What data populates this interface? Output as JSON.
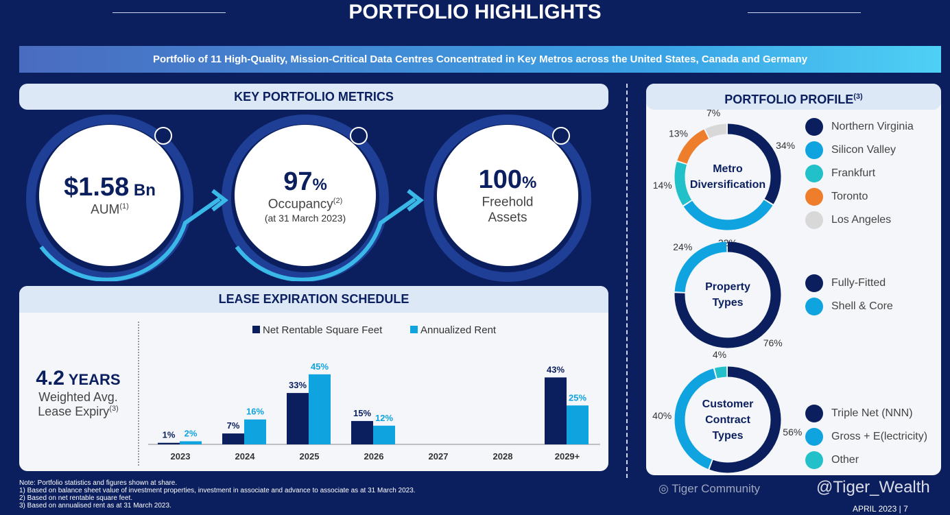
{
  "title": "PORTFOLIO HIGHLIGHTS",
  "banner": "Portfolio of 11 High-Quality, Mission-Critical Data Centres Concentrated in Key Metros across the United States, Canada and Germany",
  "key_metrics": {
    "header": "KEY PORTFOLIO METRICS",
    "items": [
      {
        "value": "$1.58",
        "unit": " Bn",
        "label": "AUM",
        "sup": "(1)",
        "sub": ""
      },
      {
        "value": "97",
        "unit": "%",
        "label": "Occupancy",
        "sup": "(2)",
        "sub": "(at 31 March 2023)"
      },
      {
        "value": "100",
        "unit": "%",
        "label": "Freehold",
        "sup": "",
        "sub": "Assets"
      }
    ]
  },
  "lease": {
    "header": "LEASE EXPIRATION SCHEDULE",
    "wale_value": "4.2",
    "wale_unit": " YEARS",
    "wale_label1": "Weighted Avg.",
    "wale_label2": "Lease Expiry",
    "wale_sup": "(3)"
  },
  "chart_data": {
    "type": "bar",
    "categories": [
      "2023",
      "2024",
      "2025",
      "2026",
      "2027",
      "2028",
      "2029+"
    ],
    "series": [
      {
        "name": "Net Rentable Square Feet",
        "color": "#0b1f5e",
        "values": [
          1,
          7,
          33,
          15,
          null,
          null,
          43
        ]
      },
      {
        "name": "Annualized Rent",
        "color": "#0fa3e0",
        "values": [
          2,
          16,
          45,
          12,
          null,
          null,
          25
        ]
      }
    ],
    "ylim": [
      0,
      50
    ]
  },
  "profile": {
    "header": "PORTFOLIO PROFILE",
    "header_sup": "(3)",
    "donuts": [
      {
        "title1": "Metro",
        "title2": "Diversification",
        "title3": "",
        "slices": [
          {
            "name": "Northern Virginia",
            "value": 34,
            "label": "34%",
            "color": "#0b1f5e"
          },
          {
            "name": "Silicon Valley",
            "value": 32,
            "label": "32%",
            "color": "#0fa3e0"
          },
          {
            "name": "Frankfurt",
            "value": 14,
            "label": "14%",
            "color": "#22c0c8"
          },
          {
            "name": "Toronto",
            "value": 13,
            "label": "13%",
            "color": "#ee7d2c"
          },
          {
            "name": "Los Angeles",
            "value": 7,
            "label": "7%",
            "color": "#d8d8d8"
          }
        ]
      },
      {
        "title1": "Property",
        "title2": "Types",
        "title3": "",
        "slices": [
          {
            "name": "Fully-Fitted",
            "value": 76,
            "label": "76%",
            "color": "#0b1f5e"
          },
          {
            "name": "Shell & Core",
            "value": 24,
            "label": "24%",
            "color": "#0fa3e0"
          }
        ]
      },
      {
        "title1": "Customer",
        "title2": "Contract",
        "title3": "Types",
        "slices": [
          {
            "name": "Triple Net (NNN)",
            "value": 56,
            "label": "56%",
            "color": "#0b1f5e"
          },
          {
            "name": "Gross + E(lectricity)",
            "value": 40,
            "label": "40%",
            "color": "#0fa3e0"
          },
          {
            "name": "Other",
            "value": 4,
            "label": "4%",
            "color": "#22c0c8"
          }
        ]
      }
    ]
  },
  "notes": [
    "Note: Portfolio statistics and figures shown at share.",
    "1)   Based on balance sheet value of investment properties, investment in associate and advance to associate as at 31 March 2023.",
    "2)   Based on net rentable square feet.",
    "3)   Based on annualised rent as at 31 March 2023."
  ],
  "footer": {
    "date": "APRIL 2023",
    "page": "7",
    "watermark1": "Tiger Community",
    "watermark2": "@Tiger_Wealth"
  }
}
